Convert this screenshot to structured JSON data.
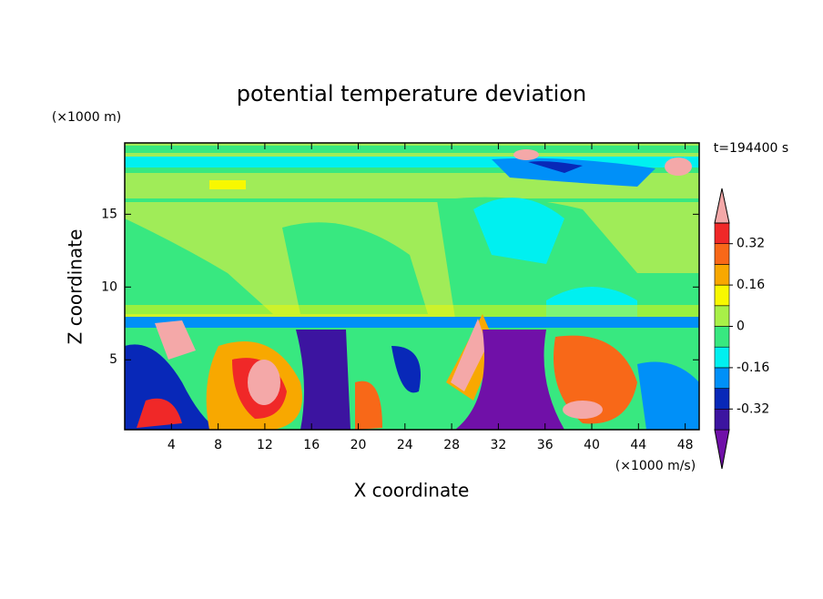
{
  "chart_data": {
    "type": "contour",
    "title": "potential temperature deviation",
    "xlabel": "X coordinate",
    "ylabel": "Z coordinate",
    "xunit": "(×1000 m/s)",
    "yunit": "(×1000 m)",
    "annotation": "t=194400 s",
    "xlim": [
      0,
      49.2
    ],
    "ylim": [
      0.2,
      19.9
    ],
    "xticks": [
      4,
      8,
      12,
      16,
      20,
      24,
      28,
      32,
      36,
      40,
      44,
      48
    ],
    "yticks": [
      5,
      10,
      15
    ],
    "colorbar": {
      "levels": [
        -0.4,
        -0.32,
        -0.24,
        -0.16,
        -0.08,
        0,
        0.08,
        0.16,
        0.24,
        0.32,
        0.4
      ],
      "colors": [
        "#7010a8",
        "#3c14a0",
        "#0828b8",
        "#0090f8",
        "#00f0f0",
        "#38e880",
        "#a8f048",
        "#f8f800",
        "#f8a800",
        "#f86818",
        "#f02828",
        "#f4a8a8"
      ],
      "ticks": [
        -0.32,
        -0.16,
        0,
        0.16,
        0.32
      ]
    }
  }
}
